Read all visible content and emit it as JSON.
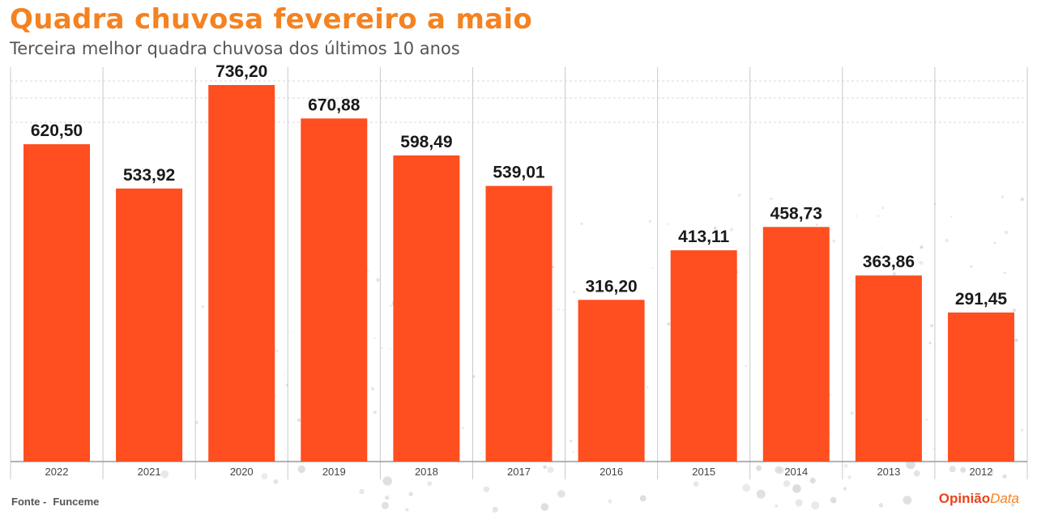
{
  "title": "Quadra chuvosa fevereiro a maio",
  "subtitle": "Terceira melhor quadra chuvosa dos últimos 10 anos",
  "source": {
    "label": "Fonte -",
    "name": "Funceme"
  },
  "brand": {
    "part1": "Opinião",
    "part2": "Data"
  },
  "colors": {
    "bar": "#ff4e1f",
    "title": "#f58220",
    "grid": "#d9d9d9",
    "axis": "#9a9a9a"
  },
  "chart_data": {
    "type": "bar",
    "title": "Quadra chuvosa fevereiro a maio",
    "subtitle": "Terceira melhor quadra chuvosa dos últimos 10 anos",
    "categories": [
      "2022",
      "2021",
      "2020",
      "2019",
      "2018",
      "2017",
      "2016",
      "2015",
      "2014",
      "2013",
      "2012"
    ],
    "values": [
      620.5,
      533.92,
      736.2,
      670.88,
      598.49,
      539.01,
      316.2,
      413.11,
      458.73,
      363.86,
      291.45
    ],
    "labels": [
      "620,50",
      "533,92",
      "736,20",
      "670,88",
      "598,49",
      "539,01",
      "316,20",
      "413,11",
      "458,73",
      "363,86",
      "291,45"
    ],
    "xlabel": "",
    "ylabel": "",
    "ylim": [
      0,
      760
    ],
    "grid": true,
    "legend": "none"
  }
}
